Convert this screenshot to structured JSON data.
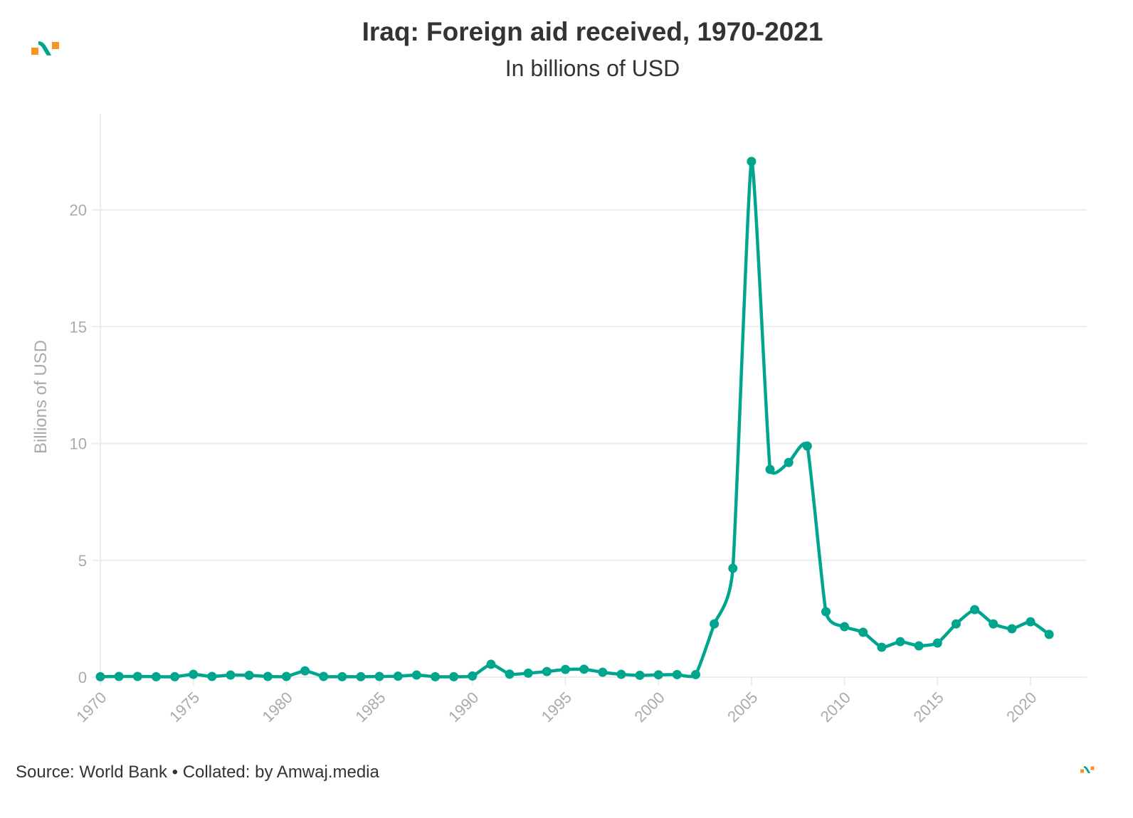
{
  "header": {
    "title": "Iraq: Foreign aid received, 1970-2021",
    "subtitle": "In billions of USD"
  },
  "footer": {
    "source": "Source: World Bank • Collated: by Amwaj.media"
  },
  "brand": {
    "logo": "amwaj-logo-icon",
    "colors": {
      "accent": "#00a58e",
      "orange": "#f7941d"
    }
  },
  "chart_data": {
    "type": "line",
    "title": "Iraq: Foreign aid received, 1970-2021",
    "subtitle": "In billions of USD",
    "xlabel": "",
    "ylabel": "Billions of USD",
    "xlim": [
      1970,
      2023
    ],
    "ylim": [
      0,
      23
    ],
    "x_ticks": [
      1970,
      1975,
      1980,
      1985,
      1990,
      1995,
      2000,
      2005,
      2010,
      2015,
      2020
    ],
    "y_ticks": [
      0,
      5,
      10,
      15,
      20
    ],
    "grid": true,
    "legend": "none",
    "series": [
      {
        "name": "Foreign aid received",
        "color": "#00a58e",
        "x": [
          1970,
          1971,
          1972,
          1973,
          1974,
          1975,
          1976,
          1977,
          1978,
          1979,
          1980,
          1981,
          1982,
          1983,
          1984,
          1985,
          1986,
          1987,
          1988,
          1989,
          1990,
          1991,
          1992,
          1993,
          1994,
          1995,
          1996,
          1997,
          1998,
          1999,
          2000,
          2001,
          2002,
          2003,
          2004,
          2005,
          2006,
          2007,
          2008,
          2009,
          2010,
          2011,
          2012,
          2013,
          2014,
          2015,
          2016,
          2017,
          2018,
          2019,
          2020,
          2021
        ],
        "values": [
          0.02,
          0.03,
          0.03,
          0.02,
          0.02,
          0.12,
          0.03,
          0.09,
          0.08,
          0.03,
          0.03,
          0.27,
          0.03,
          0.02,
          0.02,
          0.03,
          0.04,
          0.09,
          0.02,
          0.02,
          0.05,
          0.55,
          0.13,
          0.17,
          0.24,
          0.33,
          0.34,
          0.21,
          0.12,
          0.08,
          0.1,
          0.11,
          0.11,
          2.28,
          4.66,
          22.07,
          8.89,
          9.19,
          9.89,
          2.8,
          2.16,
          1.92,
          1.28,
          1.52,
          1.34,
          1.46,
          2.28,
          2.89,
          2.28,
          2.07,
          2.37,
          1.83
        ]
      }
    ]
  }
}
